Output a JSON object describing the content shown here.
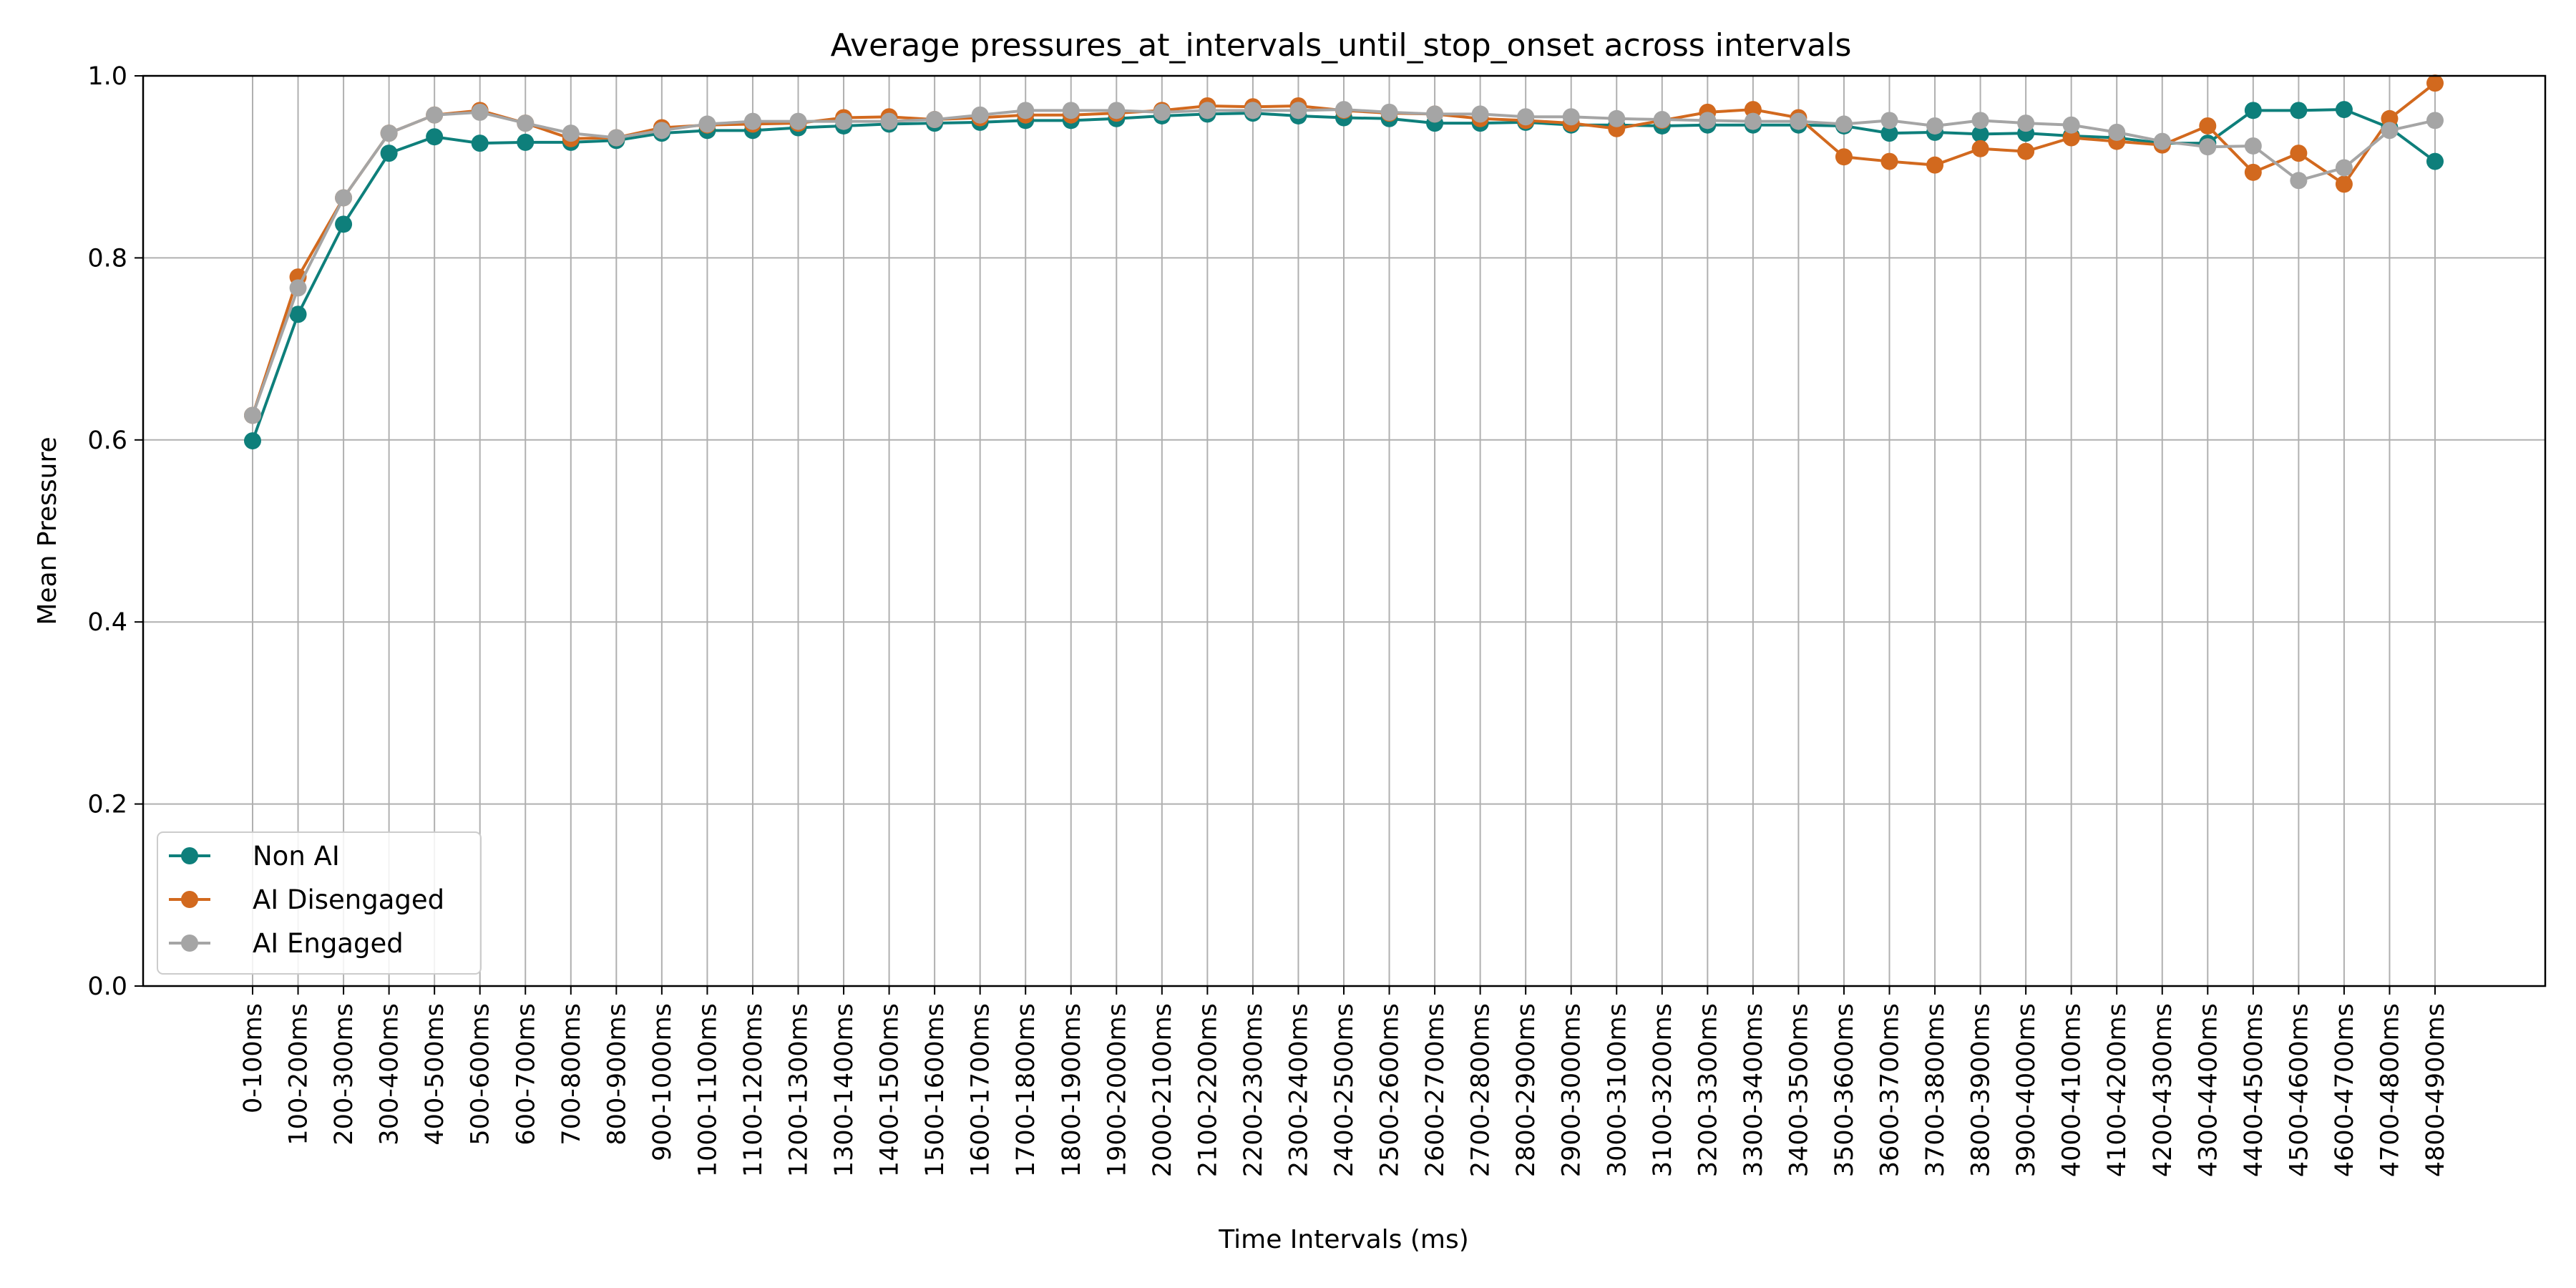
{
  "chart_data": {
    "type": "line",
    "title": "Average pressures_at_intervals_until_stop_onset across intervals",
    "xlabel": "Time Intervals (ms)",
    "ylabel": "Mean Pressure",
    "ylim": [
      0.0,
      1.0
    ],
    "yticks": [
      "0.0",
      "0.2",
      "0.4",
      "0.6",
      "0.8",
      "1.0"
    ],
    "grid": true,
    "legend_position": "lower-left",
    "categories": [
      "0-100ms",
      "100-200ms",
      "200-300ms",
      "300-400ms",
      "400-500ms",
      "500-600ms",
      "600-700ms",
      "700-800ms",
      "800-900ms",
      "900-1000ms",
      "1000-1100ms",
      "1100-1200ms",
      "1200-1300ms",
      "1300-1400ms",
      "1400-1500ms",
      "1500-1600ms",
      "1600-1700ms",
      "1700-1800ms",
      "1800-1900ms",
      "1900-2000ms",
      "2000-2100ms",
      "2100-2200ms",
      "2200-2300ms",
      "2300-2400ms",
      "2400-2500ms",
      "2500-2600ms",
      "2600-2700ms",
      "2700-2800ms",
      "2800-2900ms",
      "2900-3000ms",
      "3000-3100ms",
      "3100-3200ms",
      "3200-3300ms",
      "3300-3400ms",
      "3400-3500ms",
      "3500-3600ms",
      "3600-3700ms",
      "3700-3800ms",
      "3800-3900ms",
      "3900-4000ms",
      "4000-4100ms",
      "4100-4200ms",
      "4200-4300ms",
      "4300-4400ms",
      "4400-4500ms",
      "4500-4600ms",
      "4600-4700ms",
      "4700-4800ms",
      "4800-4900ms"
    ],
    "series": [
      {
        "name": "Non AI",
        "color": "#0e7f7b",
        "values": [
          0.599,
          0.738,
          0.837,
          0.915,
          0.933,
          0.926,
          0.927,
          0.927,
          0.929,
          0.937,
          0.94,
          0.94,
          0.943,
          0.945,
          0.947,
          0.948,
          0.949,
          0.951,
          0.951,
          0.953,
          0.956,
          0.958,
          0.959,
          0.956,
          0.954,
          0.953,
          0.948,
          0.948,
          0.949,
          0.946,
          0.946,
          0.945,
          0.946,
          0.946,
          0.946,
          0.945,
          0.937,
          0.938,
          0.936,
          0.937,
          0.934,
          0.932,
          0.926,
          0.926,
          0.962,
          0.962,
          0.963,
          0.943,
          0.906
        ]
      },
      {
        "name": "AI Disengaged",
        "color": "#d2691e",
        "values": [
          0.627,
          0.779,
          0.866,
          0.937,
          0.957,
          0.962,
          0.948,
          0.931,
          0.932,
          0.943,
          0.946,
          0.947,
          0.948,
          0.954,
          0.955,
          0.952,
          0.954,
          0.957,
          0.957,
          0.959,
          0.962,
          0.967,
          0.966,
          0.967,
          0.962,
          0.959,
          0.958,
          0.953,
          0.951,
          0.948,
          0.942,
          0.951,
          0.96,
          0.963,
          0.954,
          0.911,
          0.906,
          0.902,
          0.92,
          0.917,
          0.932,
          0.928,
          0.924,
          0.945,
          0.894,
          0.915,
          0.881,
          0.953,
          0.992
        ]
      },
      {
        "name": "AI Engaged",
        "color": "#a5a5a5",
        "values": [
          0.627,
          0.767,
          0.866,
          0.937,
          0.957,
          0.96,
          0.948,
          0.937,
          0.932,
          0.94,
          0.947,
          0.95,
          0.95,
          0.95,
          0.95,
          0.952,
          0.957,
          0.962,
          0.962,
          0.962,
          0.96,
          0.962,
          0.962,
          0.962,
          0.963,
          0.96,
          0.958,
          0.958,
          0.955,
          0.955,
          0.953,
          0.952,
          0.951,
          0.95,
          0.95,
          0.947,
          0.951,
          0.945,
          0.951,
          0.948,
          0.946,
          0.938,
          0.928,
          0.922,
          0.923,
          0.885,
          0.899,
          0.94,
          0.951
        ]
      }
    ]
  }
}
